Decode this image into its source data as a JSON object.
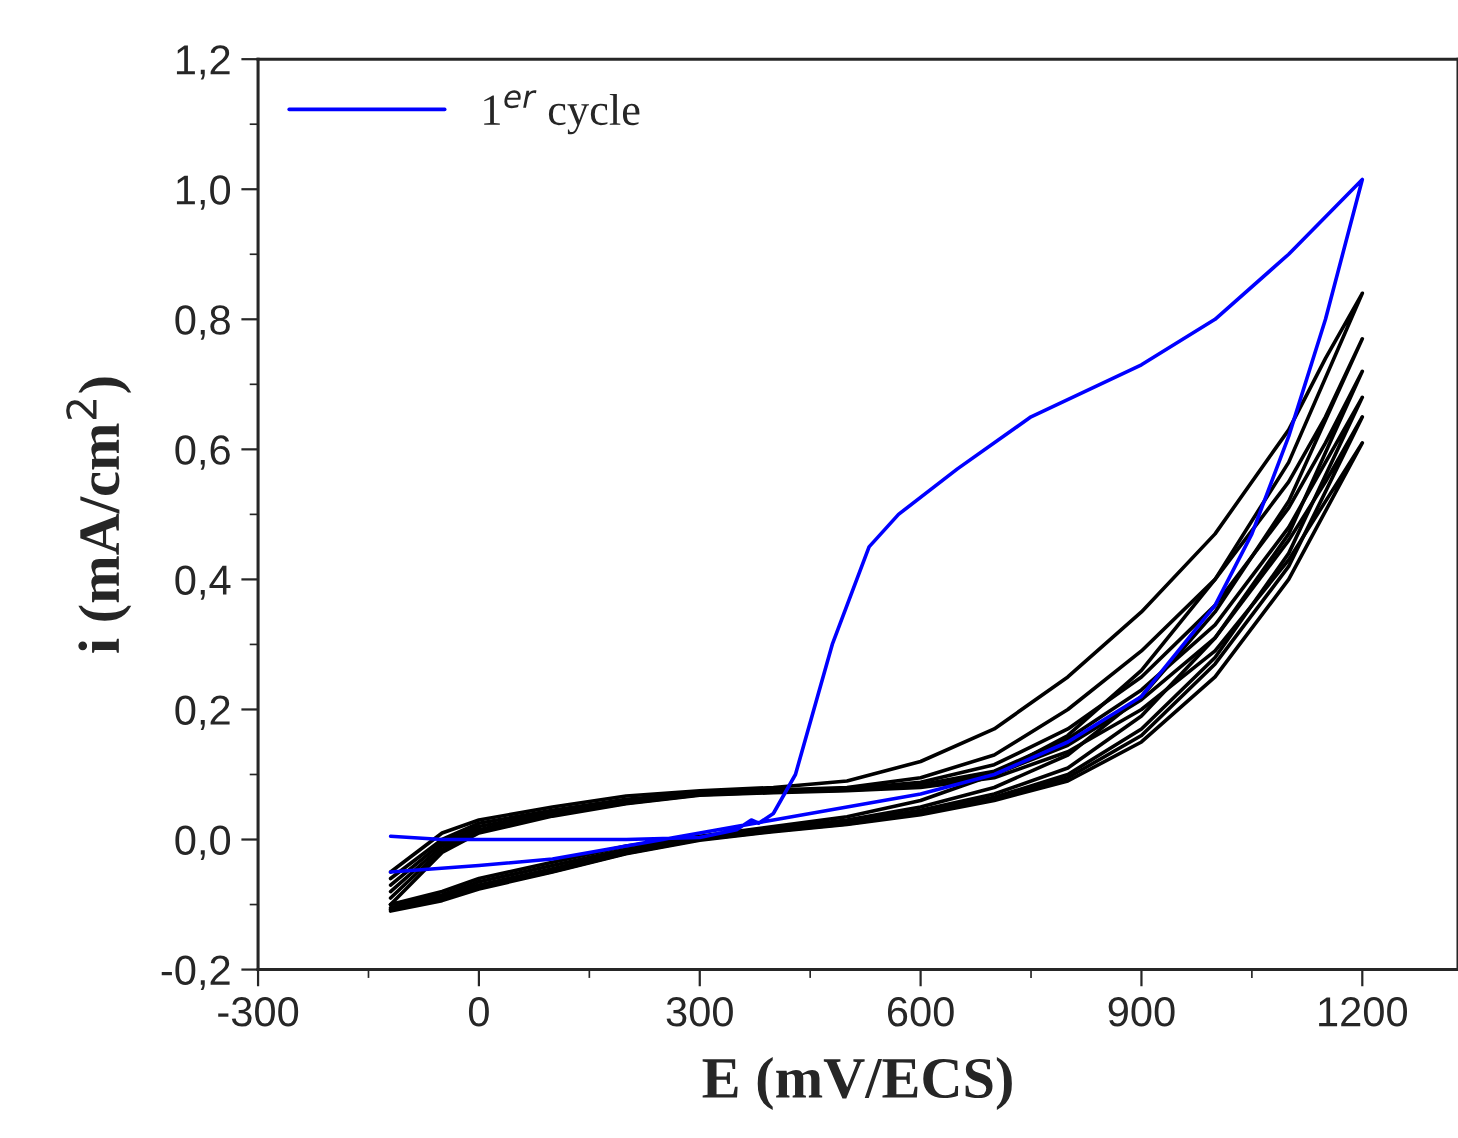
{
  "chart_data": {
    "type": "line",
    "xlabel": "E (mV/ECS)",
    "ylabel": "i (mA/cm$^{2}$)",
    "xlim": [
      -300,
      1330
    ],
    "ylim": [
      -0.2,
      1.2
    ],
    "xticks": [
      -300,
      0,
      300,
      600,
      900,
      1200
    ],
    "yticks": [
      {
        "value": -0.2,
        "label": "-0,2"
      },
      {
        "value": 0.0,
        "label": "0,0"
      },
      {
        "value": 0.2,
        "label": "0,2"
      },
      {
        "value": 0.4,
        "label": "0,4"
      },
      {
        "value": 0.6,
        "label": "0,6"
      },
      {
        "value": 0.8,
        "label": "0,8"
      },
      {
        "value": 1.0,
        "label": "1,0"
      },
      {
        "value": 1.2,
        "label": "1,2"
      }
    ],
    "grid": false,
    "legend": "top left",
    "marker": "none",
    "line_style": "solid",
    "series": [
      {
        "color": "#000000",
        "x": [
          -120,
          -50,
          0,
          100,
          200,
          300,
          400,
          500,
          600,
          700,
          800,
          900,
          1000,
          1100,
          1200,
          1150,
          1100,
          1000,
          900,
          800,
          700,
          600,
          500,
          400,
          300,
          200,
          100,
          0,
          -50,
          -120
        ],
        "values": [
          -0.1,
          -0.08,
          -0.06,
          -0.035,
          -0.01,
          0.005,
          0.02,
          0.035,
          0.06,
          0.1,
          0.16,
          0.26,
          0.4,
          0.58,
          0.84,
          0.74,
          0.63,
          0.47,
          0.35,
          0.25,
          0.17,
          0.12,
          0.09,
          0.08,
          0.075,
          0.067,
          0.05,
          0.03,
          0.01,
          -0.05
        ]
      },
      {
        "color": "#000000",
        "x": [
          -120,
          -50,
          0,
          100,
          200,
          300,
          400,
          500,
          600,
          700,
          800,
          900,
          1000,
          1100,
          1200,
          1150,
          1100,
          1000,
          900,
          800,
          700,
          600,
          500,
          400,
          300,
          200,
          100,
          0,
          -50,
          -120
        ],
        "values": [
          -0.1,
          -0.085,
          -0.065,
          -0.04,
          -0.015,
          0.003,
          0.017,
          0.03,
          0.05,
          0.08,
          0.13,
          0.22,
          0.35,
          0.52,
          0.77,
          0.65,
          0.55,
          0.4,
          0.29,
          0.2,
          0.13,
          0.095,
          0.08,
          0.076,
          0.072,
          0.062,
          0.045,
          0.025,
          0.0,
          -0.06
        ]
      },
      {
        "color": "#000000",
        "x": [
          -120,
          -50,
          0,
          100,
          200,
          300,
          400,
          500,
          600,
          700,
          800,
          900,
          1000,
          1100,
          1200,
          1150,
          1100,
          1000,
          900,
          800,
          700,
          600,
          500,
          400,
          300,
          200,
          100,
          0,
          -50,
          -120
        ],
        "values": [
          -0.105,
          -0.087,
          -0.07,
          -0.045,
          -0.018,
          0.002,
          0.015,
          0.027,
          0.045,
          0.07,
          0.11,
          0.19,
          0.31,
          0.47,
          0.72,
          0.61,
          0.51,
          0.36,
          0.25,
          0.17,
          0.115,
          0.088,
          0.078,
          0.075,
          0.071,
          0.06,
          0.042,
          0.02,
          -0.005,
          -0.07
        ]
      },
      {
        "color": "#000000",
        "x": [
          -120,
          -50,
          0,
          100,
          200,
          300,
          400,
          500,
          600,
          700,
          800,
          900,
          1000,
          1100,
          1200,
          1150,
          1100,
          1000,
          900,
          800,
          700,
          600,
          500,
          400,
          300,
          200,
          100,
          0,
          -50,
          -120
        ],
        "values": [
          -0.107,
          -0.09,
          -0.072,
          -0.047,
          -0.02,
          0.001,
          0.014,
          0.025,
          0.042,
          0.065,
          0.1,
          0.17,
          0.28,
          0.44,
          0.68,
          0.58,
          0.48,
          0.33,
          0.23,
          0.155,
          0.105,
          0.084,
          0.077,
          0.074,
          0.07,
          0.058,
          0.04,
          0.015,
          -0.01,
          -0.08
        ]
      },
      {
        "color": "#000000",
        "x": [
          -120,
          -50,
          0,
          100,
          200,
          300,
          400,
          500,
          600,
          700,
          800,
          900,
          1000,
          1100,
          1200,
          1150,
          1100,
          1000,
          900,
          800,
          700,
          600,
          500,
          400,
          300,
          200,
          100,
          0,
          -50,
          -120
        ],
        "values": [
          -0.108,
          -0.092,
          -0.074,
          -0.049,
          -0.021,
          0.0,
          0.013,
          0.024,
          0.04,
          0.062,
          0.095,
          0.16,
          0.27,
          0.42,
          0.65,
          0.55,
          0.46,
          0.31,
          0.215,
          0.145,
          0.1,
          0.082,
          0.076,
          0.073,
          0.069,
          0.056,
          0.038,
          0.012,
          -0.015,
          -0.09
        ]
      },
      {
        "color": "#000000",
        "x": [
          -120,
          -50,
          0,
          100,
          200,
          300,
          400,
          500,
          600,
          700,
          800,
          900,
          1000,
          1100,
          1200,
          1150,
          1100,
          1000,
          900,
          800,
          700,
          600,
          500,
          400,
          300,
          200,
          100,
          0,
          -50,
          -120
        ],
        "values": [
          -0.11,
          -0.094,
          -0.076,
          -0.05,
          -0.022,
          -0.001,
          0.012,
          0.023,
          0.038,
          0.06,
          0.09,
          0.15,
          0.25,
          0.4,
          0.61,
          0.52,
          0.43,
          0.29,
          0.2,
          0.135,
          0.095,
          0.08,
          0.075,
          0.072,
          0.068,
          0.055,
          0.036,
          0.01,
          -0.02,
          -0.1
        ]
      },
      {
        "name": "1$^{er}$ cycle",
        "color": "#0000ff",
        "x": [
          -120,
          -50,
          0,
          100,
          200,
          300,
          350,
          370,
          380,
          400,
          430,
          460,
          480,
          490,
          500,
          530,
          570,
          650,
          750,
          900,
          1000,
          1100,
          1200,
          1150,
          1100,
          1050,
          1000,
          900,
          800,
          700,
          600,
          500,
          400,
          300,
          200,
          100,
          0,
          -120
        ],
        "values": [
          0.005,
          0.0,
          0.0,
          0.0,
          0.0,
          0.003,
          0.015,
          0.03,
          0.025,
          0.04,
          0.1,
          0.22,
          0.3,
          0.33,
          0.36,
          0.45,
          0.5,
          0.57,
          0.65,
          0.73,
          0.8,
          0.9,
          1.015,
          0.8,
          0.62,
          0.47,
          0.36,
          0.22,
          0.15,
          0.1,
          0.07,
          0.05,
          0.03,
          0.01,
          -0.01,
          -0.03,
          -0.04,
          -0.05
        ]
      }
    ]
  }
}
